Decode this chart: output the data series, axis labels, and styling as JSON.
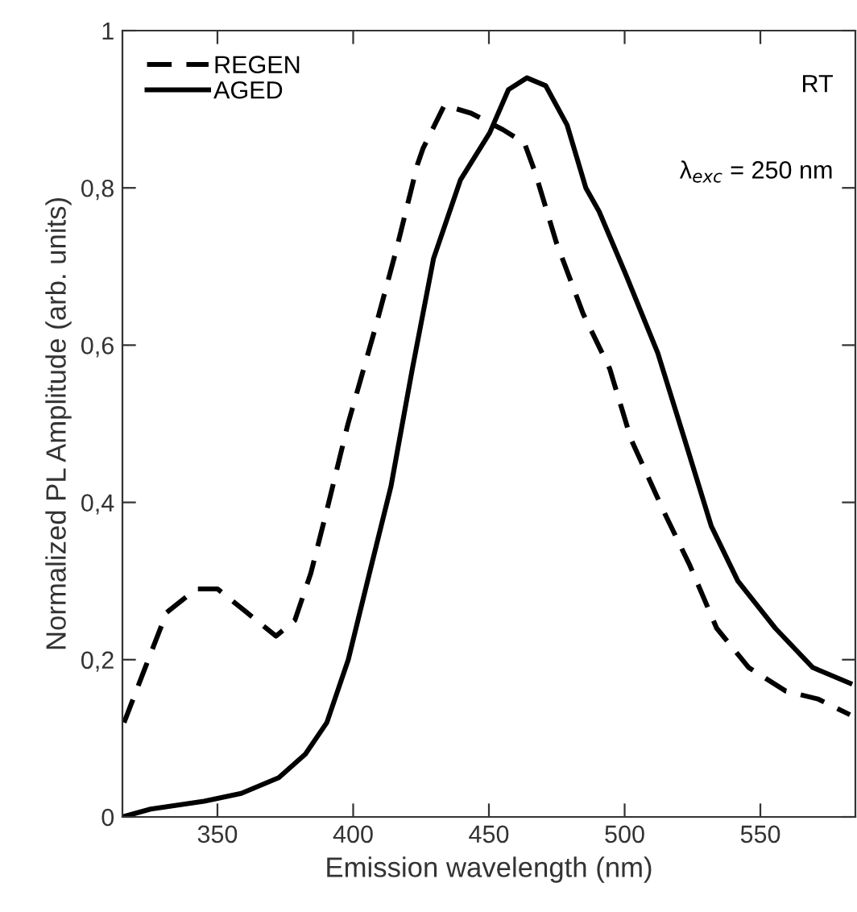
{
  "chart_data": {
    "type": "line",
    "xlabel": "Emission wavelength (nm)",
    "ylabel": "Normalized PL Amplitude (arb. units)",
    "xlim": [
      315,
      585
    ],
    "xticks": [
      350,
      400,
      450,
      500,
      550
    ],
    "ylim": [
      0,
      1
    ],
    "yticks": [
      0,
      {
        "value": 0.2,
        "label": "0,2"
      },
      {
        "value": 0.4,
        "label": "0,4"
      },
      {
        "value": 0.6,
        "label": "0,6"
      },
      {
        "value": 0.8,
        "label": "0,8"
      },
      1
    ],
    "grid": false,
    "legend": "top left",
    "marker": "none",
    "annotations": [
      "RT",
      "λ$_{exc}$ = 250 nm"
    ],
    "series": [
      {
        "name": "REGEN",
        "color": "#000000",
        "line_style": "dashed",
        "x": [
          315.6,
          323.4,
          331.3,
          342.2,
          350,
          360.8,
          371.6,
          378.5,
          384.4,
          390.3,
          398.1,
          408,
          415.8,
          423.7,
          425.7,
          433.6,
          443.4,
          455.2,
          463.1,
          467,
          474.9,
          484.7,
          494.5,
          502.4,
          514.2,
          524,
          533.9,
          545.7,
          559.4,
          571.2,
          583
        ],
        "values": [
          0.12,
          0.19,
          0.26,
          0.29,
          0.29,
          0.26,
          0.23,
          0.25,
          0.31,
          0.39,
          0.5,
          0.62,
          0.72,
          0.83,
          0.85,
          0.905,
          0.895,
          0.874,
          0.857,
          0.82,
          0.73,
          0.64,
          0.57,
          0.48,
          0.39,
          0.32,
          0.24,
          0.19,
          0.16,
          0.15,
          0.13
        ]
      },
      {
        "name": "AGED",
        "color": "#000000",
        "line_style": "solid",
        "x": [
          315,
          325.4,
          345.1,
          358.8,
          372.6,
          382.4,
          390.3,
          398.2,
          406,
          413.9,
          421.8,
          429.6,
          439.5,
          450.3,
          457.2,
          464,
          470.9,
          478.8,
          485.7,
          490.6,
          500.4,
          512.2,
          522.1,
          531.9,
          541.7,
          555.5,
          569.3,
          583
        ],
        "values": [
          0.0,
          0.01,
          0.02,
          0.03,
          0.05,
          0.08,
          0.12,
          0.2,
          0.31,
          0.42,
          0.57,
          0.71,
          0.81,
          0.87,
          0.925,
          0.94,
          0.93,
          0.88,
          0.8,
          0.77,
          0.69,
          0.59,
          0.48,
          0.37,
          0.3,
          0.24,
          0.19,
          0.17
        ]
      }
    ]
  }
}
